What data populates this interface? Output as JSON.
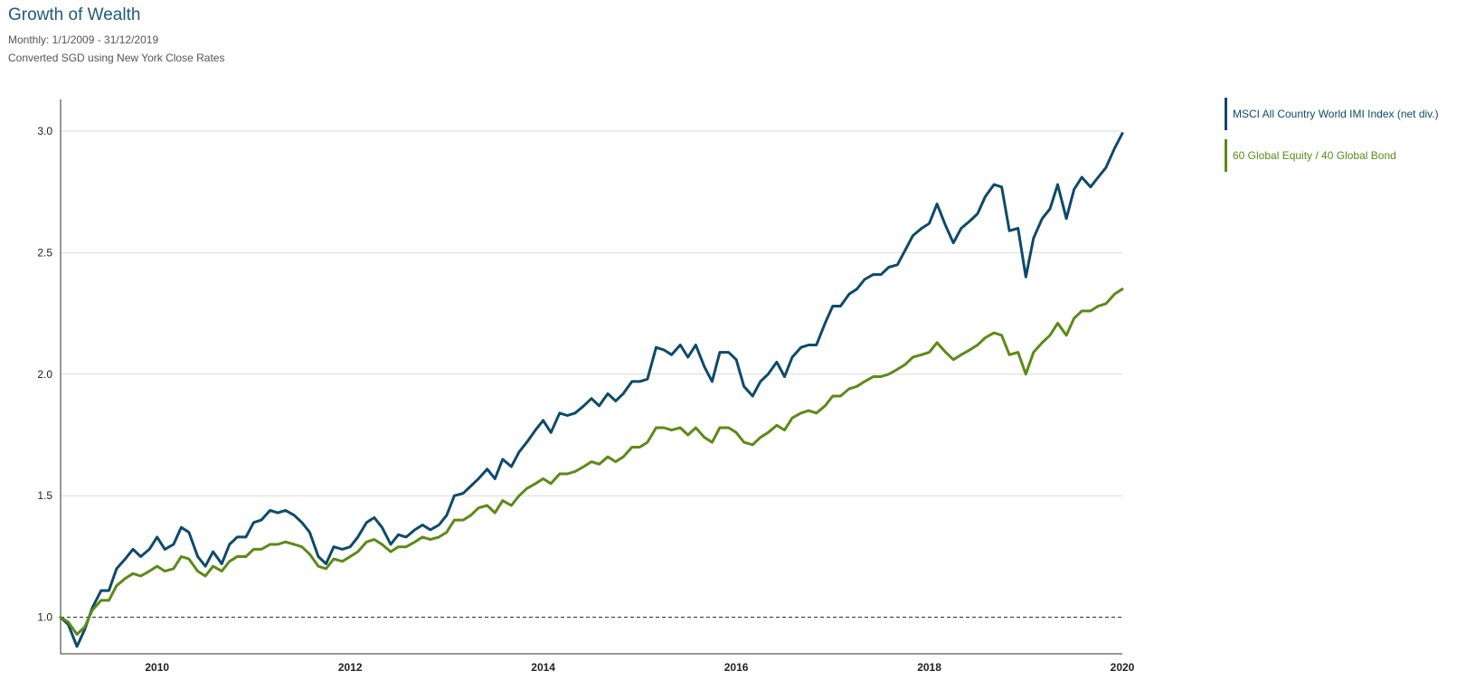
{
  "header": {
    "title": "Growth of Wealth",
    "subtitle1": "Monthly: 1/1/2009 - 31/12/2019",
    "subtitle2": "Converted SGD using New York Close Rates"
  },
  "chart_data": {
    "type": "line",
    "title": "Growth of Wealth",
    "xlim": [
      2009,
      2020
    ],
    "ylim": [
      0.85,
      3.13
    ],
    "x_ticks": [
      2010,
      2012,
      2014,
      2016,
      2018,
      2020
    ],
    "x_tick_labels": [
      "2010",
      "2012",
      "2014",
      "2016",
      "2018",
      "2020"
    ],
    "y_ticks": [
      1.0,
      1.5,
      2.0,
      2.5,
      3.0
    ],
    "y_tick_labels": [
      "1.0",
      "1.5",
      "2.0",
      "2.5",
      "3.0"
    ],
    "reference_line": 1.0,
    "grid": true,
    "legend_position": "right",
    "series": [
      {
        "name": "MSCI All Country World IMI Index (net div.)",
        "color": "#0d4a6b",
        "points": [
          [
            2009.0,
            1.0
          ],
          [
            2009.08,
            0.97
          ],
          [
            2009.17,
            0.88
          ],
          [
            2009.25,
            0.95
          ],
          [
            2009.33,
            1.04
          ],
          [
            2009.42,
            1.11
          ],
          [
            2009.5,
            1.11
          ],
          [
            2009.58,
            1.2
          ],
          [
            2009.67,
            1.24
          ],
          [
            2009.75,
            1.28
          ],
          [
            2009.83,
            1.25
          ],
          [
            2009.92,
            1.28
          ],
          [
            2010.0,
            1.33
          ],
          [
            2010.08,
            1.28
          ],
          [
            2010.17,
            1.3
          ],
          [
            2010.25,
            1.37
          ],
          [
            2010.33,
            1.35
          ],
          [
            2010.42,
            1.25
          ],
          [
            2010.5,
            1.21
          ],
          [
            2010.58,
            1.27
          ],
          [
            2010.67,
            1.22
          ],
          [
            2010.75,
            1.3
          ],
          [
            2010.83,
            1.33
          ],
          [
            2010.92,
            1.33
          ],
          [
            2011.0,
            1.39
          ],
          [
            2011.08,
            1.4
          ],
          [
            2011.17,
            1.44
          ],
          [
            2011.25,
            1.43
          ],
          [
            2011.33,
            1.44
          ],
          [
            2011.42,
            1.42
          ],
          [
            2011.5,
            1.39
          ],
          [
            2011.58,
            1.35
          ],
          [
            2011.67,
            1.25
          ],
          [
            2011.75,
            1.22
          ],
          [
            2011.83,
            1.29
          ],
          [
            2011.92,
            1.28
          ],
          [
            2012.0,
            1.29
          ],
          [
            2012.08,
            1.33
          ],
          [
            2012.17,
            1.39
          ],
          [
            2012.25,
            1.41
          ],
          [
            2012.33,
            1.37
          ],
          [
            2012.42,
            1.3
          ],
          [
            2012.5,
            1.34
          ],
          [
            2012.58,
            1.33
          ],
          [
            2012.67,
            1.36
          ],
          [
            2012.75,
            1.38
          ],
          [
            2012.83,
            1.36
          ],
          [
            2012.92,
            1.38
          ],
          [
            2013.0,
            1.42
          ],
          [
            2013.08,
            1.5
          ],
          [
            2013.17,
            1.51
          ],
          [
            2013.25,
            1.54
          ],
          [
            2013.33,
            1.57
          ],
          [
            2013.42,
            1.61
          ],
          [
            2013.5,
            1.57
          ],
          [
            2013.58,
            1.65
          ],
          [
            2013.67,
            1.62
          ],
          [
            2013.75,
            1.68
          ],
          [
            2013.83,
            1.72
          ],
          [
            2013.92,
            1.77
          ],
          [
            2014.0,
            1.81
          ],
          [
            2014.08,
            1.76
          ],
          [
            2014.17,
            1.84
          ],
          [
            2014.25,
            1.83
          ],
          [
            2014.33,
            1.84
          ],
          [
            2014.42,
            1.87
          ],
          [
            2014.5,
            1.9
          ],
          [
            2014.58,
            1.87
          ],
          [
            2014.67,
            1.92
          ],
          [
            2014.75,
            1.89
          ],
          [
            2014.83,
            1.92
          ],
          [
            2014.92,
            1.97
          ],
          [
            2015.0,
            1.97
          ],
          [
            2015.08,
            1.98
          ],
          [
            2015.17,
            2.11
          ],
          [
            2015.25,
            2.1
          ],
          [
            2015.33,
            2.08
          ],
          [
            2015.42,
            2.12
          ],
          [
            2015.5,
            2.07
          ],
          [
            2015.58,
            2.12
          ],
          [
            2015.67,
            2.03
          ],
          [
            2015.75,
            1.97
          ],
          [
            2015.83,
            2.09
          ],
          [
            2015.92,
            2.09
          ],
          [
            2016.0,
            2.06
          ],
          [
            2016.08,
            1.95
          ],
          [
            2016.17,
            1.91
          ],
          [
            2016.25,
            1.97
          ],
          [
            2016.33,
            2.0
          ],
          [
            2016.42,
            2.05
          ],
          [
            2016.5,
            1.99
          ],
          [
            2016.58,
            2.07
          ],
          [
            2016.67,
            2.11
          ],
          [
            2016.75,
            2.12
          ],
          [
            2016.83,
            2.12
          ],
          [
            2016.92,
            2.21
          ],
          [
            2017.0,
            2.28
          ],
          [
            2017.08,
            2.28
          ],
          [
            2017.17,
            2.33
          ],
          [
            2017.25,
            2.35
          ],
          [
            2017.33,
            2.39
          ],
          [
            2017.42,
            2.41
          ],
          [
            2017.5,
            2.41
          ],
          [
            2017.58,
            2.44
          ],
          [
            2017.67,
            2.45
          ],
          [
            2017.75,
            2.51
          ],
          [
            2017.83,
            2.57
          ],
          [
            2017.92,
            2.6
          ],
          [
            2018.0,
            2.62
          ],
          [
            2018.08,
            2.7
          ],
          [
            2018.17,
            2.61
          ],
          [
            2018.25,
            2.54
          ],
          [
            2018.33,
            2.6
          ],
          [
            2018.42,
            2.63
          ],
          [
            2018.5,
            2.66
          ],
          [
            2018.58,
            2.73
          ],
          [
            2018.67,
            2.78
          ],
          [
            2018.75,
            2.77
          ],
          [
            2018.83,
            2.59
          ],
          [
            2018.92,
            2.6
          ],
          [
            2019.0,
            2.4
          ],
          [
            2019.08,
            2.56
          ],
          [
            2019.17,
            2.64
          ],
          [
            2019.25,
            2.68
          ],
          [
            2019.33,
            2.78
          ],
          [
            2019.42,
            2.64
          ],
          [
            2019.5,
            2.76
          ],
          [
            2019.58,
            2.81
          ],
          [
            2019.67,
            2.77
          ],
          [
            2019.75,
            2.81
          ],
          [
            2019.83,
            2.85
          ],
          [
            2019.92,
            2.93
          ],
          [
            2020.0,
            2.99
          ]
        ]
      },
      {
        "name": "60 Global Equity / 40 Global Bond",
        "color": "#5c8a17",
        "points": [
          [
            2009.0,
            1.0
          ],
          [
            2009.08,
            0.98
          ],
          [
            2009.17,
            0.93
          ],
          [
            2009.25,
            0.96
          ],
          [
            2009.33,
            1.03
          ],
          [
            2009.42,
            1.07
          ],
          [
            2009.5,
            1.07
          ],
          [
            2009.58,
            1.13
          ],
          [
            2009.67,
            1.16
          ],
          [
            2009.75,
            1.18
          ],
          [
            2009.83,
            1.17
          ],
          [
            2009.92,
            1.19
          ],
          [
            2010.0,
            1.21
          ],
          [
            2010.08,
            1.19
          ],
          [
            2010.17,
            1.2
          ],
          [
            2010.25,
            1.25
          ],
          [
            2010.33,
            1.24
          ],
          [
            2010.42,
            1.19
          ],
          [
            2010.5,
            1.17
          ],
          [
            2010.58,
            1.21
          ],
          [
            2010.67,
            1.19
          ],
          [
            2010.75,
            1.23
          ],
          [
            2010.83,
            1.25
          ],
          [
            2010.92,
            1.25
          ],
          [
            2011.0,
            1.28
          ],
          [
            2011.08,
            1.28
          ],
          [
            2011.17,
            1.3
          ],
          [
            2011.25,
            1.3
          ],
          [
            2011.33,
            1.31
          ],
          [
            2011.42,
            1.3
          ],
          [
            2011.5,
            1.29
          ],
          [
            2011.58,
            1.26
          ],
          [
            2011.67,
            1.21
          ],
          [
            2011.75,
            1.2
          ],
          [
            2011.83,
            1.24
          ],
          [
            2011.92,
            1.23
          ],
          [
            2012.0,
            1.25
          ],
          [
            2012.08,
            1.27
          ],
          [
            2012.17,
            1.31
          ],
          [
            2012.25,
            1.32
          ],
          [
            2012.33,
            1.3
          ],
          [
            2012.42,
            1.27
          ],
          [
            2012.5,
            1.29
          ],
          [
            2012.58,
            1.29
          ],
          [
            2012.67,
            1.31
          ],
          [
            2012.75,
            1.33
          ],
          [
            2012.83,
            1.32
          ],
          [
            2012.92,
            1.33
          ],
          [
            2013.0,
            1.35
          ],
          [
            2013.08,
            1.4
          ],
          [
            2013.17,
            1.4
          ],
          [
            2013.25,
            1.42
          ],
          [
            2013.33,
            1.45
          ],
          [
            2013.42,
            1.46
          ],
          [
            2013.5,
            1.43
          ],
          [
            2013.58,
            1.48
          ],
          [
            2013.67,
            1.46
          ],
          [
            2013.75,
            1.5
          ],
          [
            2013.83,
            1.53
          ],
          [
            2013.92,
            1.55
          ],
          [
            2014.0,
            1.57
          ],
          [
            2014.08,
            1.55
          ],
          [
            2014.17,
            1.59
          ],
          [
            2014.25,
            1.59
          ],
          [
            2014.33,
            1.6
          ],
          [
            2014.42,
            1.62
          ],
          [
            2014.5,
            1.64
          ],
          [
            2014.58,
            1.63
          ],
          [
            2014.67,
            1.66
          ],
          [
            2014.75,
            1.64
          ],
          [
            2014.83,
            1.66
          ],
          [
            2014.92,
            1.7
          ],
          [
            2015.0,
            1.7
          ],
          [
            2015.08,
            1.72
          ],
          [
            2015.17,
            1.78
          ],
          [
            2015.25,
            1.78
          ],
          [
            2015.33,
            1.77
          ],
          [
            2015.42,
            1.78
          ],
          [
            2015.5,
            1.75
          ],
          [
            2015.58,
            1.78
          ],
          [
            2015.67,
            1.74
          ],
          [
            2015.75,
            1.72
          ],
          [
            2015.83,
            1.78
          ],
          [
            2015.92,
            1.78
          ],
          [
            2016.0,
            1.76
          ],
          [
            2016.08,
            1.72
          ],
          [
            2016.17,
            1.71
          ],
          [
            2016.25,
            1.74
          ],
          [
            2016.33,
            1.76
          ],
          [
            2016.42,
            1.79
          ],
          [
            2016.5,
            1.77
          ],
          [
            2016.58,
            1.82
          ],
          [
            2016.67,
            1.84
          ],
          [
            2016.75,
            1.85
          ],
          [
            2016.83,
            1.84
          ],
          [
            2016.92,
            1.87
          ],
          [
            2017.0,
            1.91
          ],
          [
            2017.08,
            1.91
          ],
          [
            2017.17,
            1.94
          ],
          [
            2017.25,
            1.95
          ],
          [
            2017.33,
            1.97
          ],
          [
            2017.42,
            1.99
          ],
          [
            2017.5,
            1.99
          ],
          [
            2017.58,
            2.0
          ],
          [
            2017.67,
            2.02
          ],
          [
            2017.75,
            2.04
          ],
          [
            2017.83,
            2.07
          ],
          [
            2017.92,
            2.08
          ],
          [
            2018.0,
            2.09
          ],
          [
            2018.08,
            2.13
          ],
          [
            2018.17,
            2.09
          ],
          [
            2018.25,
            2.06
          ],
          [
            2018.33,
            2.08
          ],
          [
            2018.42,
            2.1
          ],
          [
            2018.5,
            2.12
          ],
          [
            2018.58,
            2.15
          ],
          [
            2018.67,
            2.17
          ],
          [
            2018.75,
            2.16
          ],
          [
            2018.83,
            2.08
          ],
          [
            2018.92,
            2.09
          ],
          [
            2019.0,
            2.0
          ],
          [
            2019.08,
            2.09
          ],
          [
            2019.17,
            2.13
          ],
          [
            2019.25,
            2.16
          ],
          [
            2019.33,
            2.21
          ],
          [
            2019.42,
            2.16
          ],
          [
            2019.5,
            2.23
          ],
          [
            2019.58,
            2.26
          ],
          [
            2019.67,
            2.26
          ],
          [
            2019.75,
            2.28
          ],
          [
            2019.83,
            2.29
          ],
          [
            2019.92,
            2.33
          ],
          [
            2020.0,
            2.35
          ]
        ]
      }
    ]
  }
}
